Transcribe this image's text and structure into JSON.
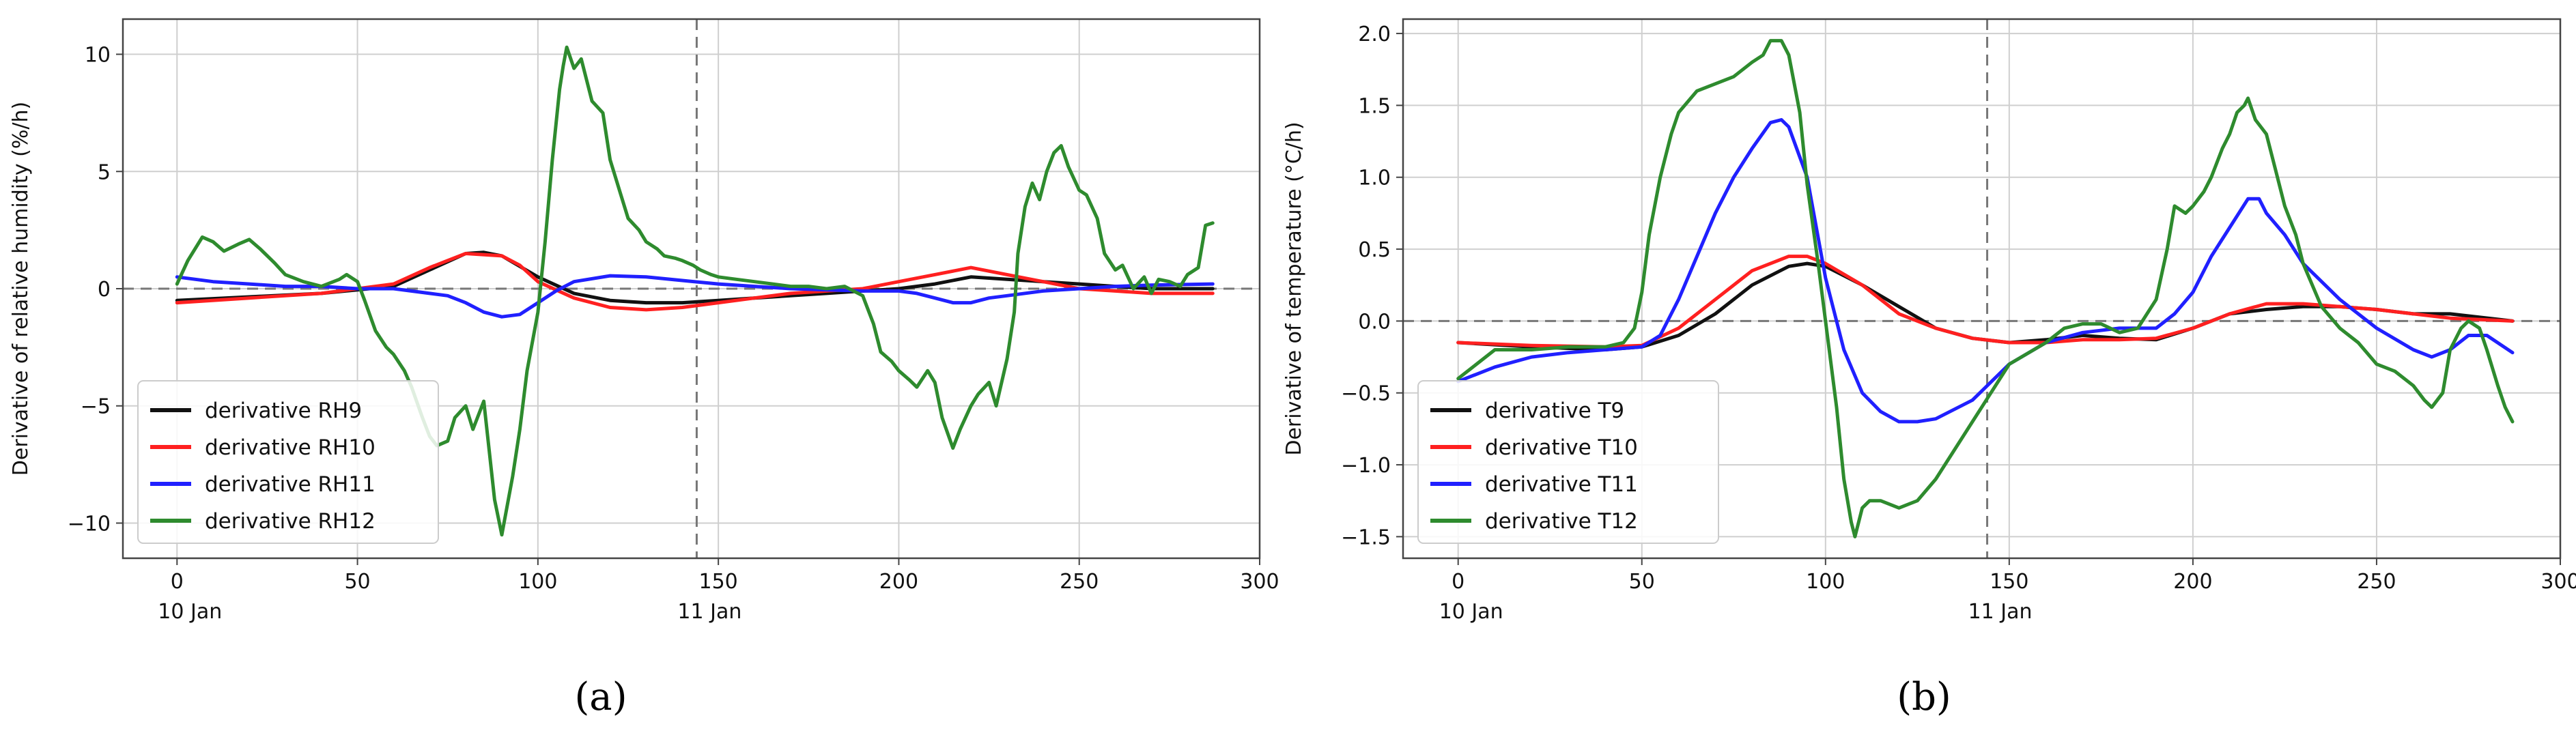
{
  "figure": {
    "panel_labels": [
      "(a)",
      "(b)"
    ]
  },
  "chart_data": [
    {
      "type": "line",
      "panel_label": "(a)",
      "title": "",
      "xlabel": "",
      "ylabel": "Derivative of relative humidity (%/h)",
      "xlim": [
        -15,
        300
      ],
      "ylim": [
        -11.5,
        11.5
      ],
      "xticks": [
        0,
        50,
        100,
        150,
        200,
        250,
        300
      ],
      "yticks": [
        -10,
        -5,
        0,
        5,
        10
      ],
      "ytick_labels": [
        "−10",
        "−5",
        "0",
        "5",
        "10"
      ],
      "grid": true,
      "legend_position": "lower-left",
      "zero_line": 0,
      "vline_x": 144,
      "date_labels": [
        {
          "x": 0,
          "text": "10 Jan"
        },
        {
          "x": 144,
          "text": "11 Jan"
        }
      ],
      "series": [
        {
          "name": "derivative RH9",
          "color": "#111111",
          "x": [
            0,
            20,
            40,
            60,
            70,
            80,
            85,
            90,
            100,
            110,
            120,
            130,
            140,
            150,
            160,
            170,
            180,
            190,
            200,
            210,
            220,
            230,
            240,
            250,
            260,
            270,
            287
          ],
          "y": [
            -0.5,
            -0.35,
            -0.2,
            0.1,
            0.8,
            1.5,
            1.55,
            1.4,
            0.5,
            -0.2,
            -0.5,
            -0.6,
            -0.6,
            -0.5,
            -0.4,
            -0.3,
            -0.2,
            -0.1,
            0.0,
            0.2,
            0.5,
            0.4,
            0.3,
            0.2,
            0.1,
            0.0,
            0.0
          ]
        },
        {
          "name": "derivative RH10",
          "color": "#ff2020",
          "x": [
            0,
            20,
            40,
            60,
            70,
            80,
            90,
            95,
            100,
            110,
            120,
            130,
            140,
            150,
            160,
            170,
            180,
            190,
            200,
            210,
            220,
            230,
            240,
            250,
            260,
            270,
            287
          ],
          "y": [
            -0.6,
            -0.4,
            -0.2,
            0.2,
            0.9,
            1.5,
            1.4,
            1.0,
            0.3,
            -0.4,
            -0.8,
            -0.9,
            -0.8,
            -0.6,
            -0.4,
            -0.2,
            -0.1,
            0.0,
            0.3,
            0.6,
            0.9,
            0.6,
            0.3,
            0.0,
            -0.1,
            -0.2,
            -0.2
          ]
        },
        {
          "name": "derivative RH11",
          "color": "#2020ff",
          "x": [
            0,
            10,
            20,
            30,
            40,
            50,
            60,
            70,
            75,
            80,
            85,
            90,
            95,
            100,
            105,
            110,
            120,
            130,
            140,
            150,
            160,
            170,
            180,
            190,
            200,
            205,
            210,
            215,
            220,
            225,
            230,
            240,
            250,
            260,
            270,
            287
          ],
          "y": [
            0.5,
            0.3,
            0.2,
            0.1,
            0.1,
            0.0,
            0.0,
            -0.2,
            -0.3,
            -0.6,
            -1.0,
            -1.2,
            -1.1,
            -0.6,
            -0.1,
            0.3,
            0.55,
            0.5,
            0.35,
            0.2,
            0.1,
            0.0,
            -0.05,
            -0.1,
            -0.1,
            -0.2,
            -0.4,
            -0.6,
            -0.6,
            -0.4,
            -0.3,
            -0.1,
            0.0,
            0.1,
            0.15,
            0.2
          ]
        },
        {
          "name": "derivative RH12",
          "color": "#2e8b2e",
          "x": [
            0,
            3,
            7,
            10,
            13,
            17,
            20,
            23,
            27,
            30,
            35,
            40,
            45,
            47,
            50,
            52,
            55,
            58,
            60,
            63,
            65,
            68,
            70,
            72,
            75,
            77,
            80,
            82,
            85,
            88,
            90,
            93,
            95,
            97,
            100,
            102,
            104,
            106,
            107,
            108,
            110,
            112,
            115,
            118,
            120,
            123,
            125,
            128,
            130,
            133,
            135,
            138,
            140,
            143,
            145,
            148,
            150,
            155,
            160,
            165,
            170,
            175,
            180,
            185,
            190,
            193,
            195,
            198,
            200,
            203,
            205,
            208,
            210,
            212,
            215,
            217,
            220,
            222,
            225,
            227,
            230,
            232,
            233,
            235,
            237,
            239,
            241,
            243,
            245,
            247,
            250,
            252,
            255,
            257,
            260,
            262,
            265,
            268,
            270,
            272,
            275,
            278,
            280,
            283,
            285,
            287
          ],
          "y": [
            0.2,
            1.2,
            2.2,
            2.0,
            1.6,
            1.9,
            2.1,
            1.7,
            1.1,
            0.6,
            0.3,
            0.1,
            0.4,
            0.6,
            0.3,
            -0.5,
            -1.8,
            -2.5,
            -2.8,
            -3.5,
            -4.2,
            -5.5,
            -6.3,
            -6.7,
            -6.5,
            -5.5,
            -5.0,
            -6.0,
            -4.8,
            -9.0,
            -10.5,
            -8.0,
            -6.0,
            -3.5,
            -1.0,
            2.0,
            5.5,
            8.5,
            9.5,
            10.3,
            9.4,
            9.8,
            8.0,
            7.5,
            5.5,
            4.0,
            3.0,
            2.5,
            2.0,
            1.7,
            1.4,
            1.3,
            1.2,
            1.0,
            0.8,
            0.6,
            0.5,
            0.4,
            0.3,
            0.2,
            0.1,
            0.1,
            0.0,
            0.1,
            -0.3,
            -1.5,
            -2.7,
            -3.1,
            -3.5,
            -3.9,
            -4.2,
            -3.5,
            -4.0,
            -5.5,
            -6.8,
            -6.0,
            -5.0,
            -4.5,
            -4.0,
            -5.0,
            -3.0,
            -1.0,
            1.5,
            3.5,
            4.5,
            3.8,
            5.0,
            5.8,
            6.1,
            5.2,
            4.2,
            4.0,
            3.0,
            1.5,
            0.8,
            1.0,
            0.0,
            0.5,
            -0.2,
            0.4,
            0.3,
            0.1,
            0.6,
            0.9,
            2.7,
            2.8
          ]
        }
      ]
    },
    {
      "type": "line",
      "panel_label": "(b)",
      "title": "",
      "xlabel": "",
      "ylabel": "Derivative of temperature (°C/h)",
      "xlim": [
        -15,
        300
      ],
      "ylim": [
        -1.65,
        2.1
      ],
      "xticks": [
        0,
        50,
        100,
        150,
        200,
        250,
        300
      ],
      "yticks": [
        -1.5,
        -1.0,
        -0.5,
        0.0,
        0.5,
        1.0,
        1.5,
        2.0
      ],
      "ytick_labels": [
        "−1.5",
        "−1.0",
        "−0.5",
        "0.0",
        "0.5",
        "1.0",
        "1.5",
        "2.0"
      ],
      "grid": true,
      "legend_position": "lower-left",
      "zero_line": 0,
      "vline_x": 144,
      "date_labels": [
        {
          "x": 0,
          "text": "10 Jan"
        },
        {
          "x": 144,
          "text": "11 Jan"
        }
      ],
      "series": [
        {
          "name": "derivative T9",
          "color": "#111111",
          "x": [
            0,
            20,
            40,
            50,
            60,
            70,
            80,
            90,
            95,
            100,
            110,
            120,
            130,
            140,
            150,
            160,
            170,
            180,
            190,
            200,
            210,
            220,
            230,
            240,
            250,
            260,
            270,
            287
          ],
          "y": [
            -0.15,
            -0.18,
            -0.2,
            -0.18,
            -0.1,
            0.05,
            0.25,
            0.38,
            0.4,
            0.38,
            0.25,
            0.1,
            -0.05,
            -0.12,
            -0.15,
            -0.13,
            -0.1,
            -0.12,
            -0.13,
            -0.05,
            0.05,
            0.08,
            0.1,
            0.1,
            0.08,
            0.05,
            0.05,
            0.0
          ]
        },
        {
          "name": "derivative T10",
          "color": "#ff2020",
          "x": [
            0,
            20,
            40,
            50,
            60,
            70,
            80,
            90,
            95,
            100,
            110,
            120,
            130,
            140,
            150,
            160,
            170,
            180,
            190,
            200,
            210,
            220,
            230,
            240,
            250,
            260,
            270,
            287
          ],
          "y": [
            -0.15,
            -0.17,
            -0.18,
            -0.17,
            -0.05,
            0.15,
            0.35,
            0.45,
            0.45,
            0.4,
            0.25,
            0.05,
            -0.05,
            -0.12,
            -0.15,
            -0.15,
            -0.13,
            -0.13,
            -0.12,
            -0.05,
            0.05,
            0.12,
            0.12,
            0.1,
            0.08,
            0.05,
            0.02,
            0.0
          ]
        },
        {
          "name": "derivative T11",
          "color": "#2020ff",
          "x": [
            0,
            10,
            20,
            30,
            40,
            50,
            55,
            60,
            65,
            70,
            75,
            80,
            85,
            88,
            90,
            95,
            100,
            105,
            110,
            115,
            120,
            125,
            130,
            140,
            150,
            160,
            170,
            180,
            190,
            195,
            200,
            205,
            210,
            215,
            218,
            220,
            225,
            230,
            240,
            250,
            260,
            265,
            270,
            275,
            280,
            287
          ],
          "y": [
            -0.42,
            -0.32,
            -0.25,
            -0.22,
            -0.2,
            -0.18,
            -0.1,
            0.15,
            0.45,
            0.75,
            1.0,
            1.2,
            1.38,
            1.4,
            1.35,
            1.0,
            0.3,
            -0.2,
            -0.5,
            -0.63,
            -0.7,
            -0.7,
            -0.68,
            -0.55,
            -0.3,
            -0.15,
            -0.08,
            -0.05,
            -0.05,
            0.05,
            0.2,
            0.45,
            0.65,
            0.85,
            0.85,
            0.75,
            0.6,
            0.4,
            0.15,
            -0.05,
            -0.2,
            -0.25,
            -0.2,
            -0.1,
            -0.1,
            -0.22
          ]
        },
        {
          "name": "derivative T12",
          "color": "#2e8b2e",
          "x": [
            0,
            5,
            10,
            20,
            30,
            40,
            45,
            48,
            50,
            52,
            55,
            58,
            60,
            65,
            70,
            75,
            80,
            83,
            85,
            88,
            90,
            93,
            95,
            98,
            100,
            103,
            105,
            107,
            108,
            110,
            112,
            115,
            120,
            125,
            130,
            135,
            140,
            145,
            150,
            160,
            165,
            170,
            175,
            180,
            185,
            190,
            193,
            195,
            198,
            200,
            203,
            205,
            208,
            210,
            212,
            214,
            215,
            217,
            220,
            223,
            225,
            228,
            230,
            235,
            240,
            245,
            250,
            255,
            260,
            263,
            265,
            268,
            270,
            273,
            275,
            278,
            280,
            283,
            285,
            287
          ],
          "y": [
            -0.4,
            -0.3,
            -0.2,
            -0.2,
            -0.18,
            -0.18,
            -0.15,
            -0.05,
            0.2,
            0.6,
            1.0,
            1.3,
            1.45,
            1.6,
            1.65,
            1.7,
            1.8,
            1.85,
            1.95,
            1.95,
            1.85,
            1.45,
            0.95,
            0.4,
            0.0,
            -0.6,
            -1.1,
            -1.4,
            -1.5,
            -1.3,
            -1.25,
            -1.25,
            -1.3,
            -1.25,
            -1.1,
            -0.9,
            -0.7,
            -0.5,
            -0.3,
            -0.15,
            -0.05,
            -0.02,
            -0.02,
            -0.08,
            -0.05,
            0.15,
            0.5,
            0.8,
            0.75,
            0.8,
            0.9,
            1.0,
            1.2,
            1.3,
            1.45,
            1.5,
            1.55,
            1.4,
            1.3,
            1.0,
            0.8,
            0.6,
            0.4,
            0.1,
            -0.05,
            -0.15,
            -0.3,
            -0.35,
            -0.45,
            -0.55,
            -0.6,
            -0.5,
            -0.2,
            -0.05,
            0.0,
            -0.05,
            -0.2,
            -0.45,
            -0.6,
            -0.7
          ]
        }
      ]
    }
  ]
}
